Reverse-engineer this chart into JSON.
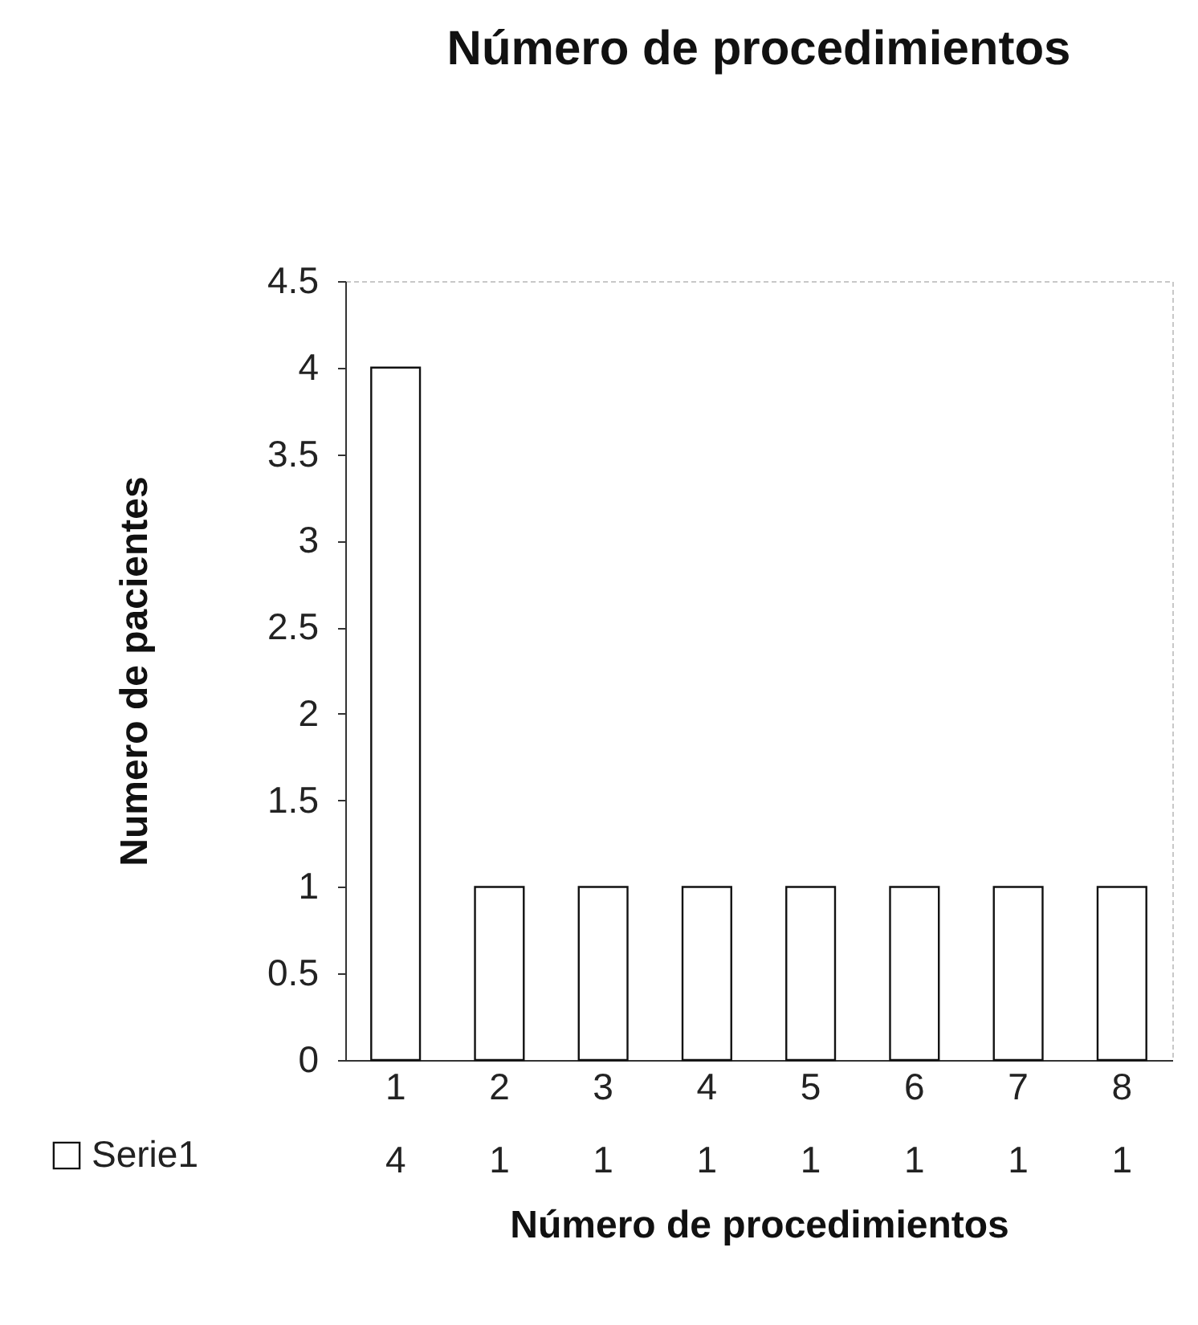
{
  "chart_data": {
    "type": "bar",
    "title": "Número de procedimientos",
    "xlabel": "Número de procedimientos",
    "ylabel": "Numero de pacientes",
    "categories": [
      "1",
      "2",
      "3",
      "4",
      "5",
      "6",
      "7",
      "8"
    ],
    "series": [
      {
        "name": "Serie1",
        "color": "#ffffff",
        "values": [
          4,
          1,
          1,
          1,
          1,
          1,
          1,
          1
        ]
      }
    ],
    "ylim": [
      0,
      4.5
    ],
    "yticks": [
      0,
      0.5,
      1,
      1.5,
      2,
      2.5,
      3,
      3.5,
      4,
      4.5
    ],
    "grid": false,
    "data_labels": true,
    "legend": "bottom left"
  }
}
